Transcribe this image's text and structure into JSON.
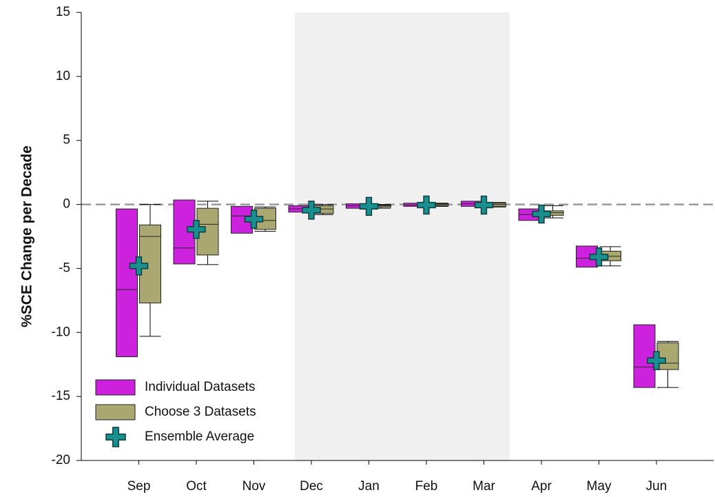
{
  "chart_data": {
    "type": "box",
    "y_label": "%SCE Change per Decade",
    "categories": [
      "Sep",
      "Oct",
      "Nov",
      "Dec",
      "Jan",
      "Feb",
      "Mar",
      "Apr",
      "May",
      "Jun"
    ],
    "ylim": [
      -20,
      15
    ],
    "yticks": [
      -20,
      -15,
      -10,
      -5,
      0,
      5,
      10,
      15
    ],
    "reference_line": 0,
    "series": [
      {
        "name": "Individual Datasets",
        "color": "#cc22dd",
        "q3": [
          -0.35,
          0.35,
          -0.15,
          -0.1,
          0.05,
          0.1,
          0.25,
          -0.35,
          -3.25,
          -9.4
        ],
        "median": [
          -6.65,
          -3.4,
          -0.9,
          -0.35,
          -0.1,
          -0.05,
          0.05,
          -0.8,
          -4.2,
          -12.7
        ],
        "q1": [
          -11.9,
          -4.65,
          -2.25,
          -0.6,
          -0.3,
          -0.15,
          -0.15,
          -1.25,
          -4.9,
          -14.3
        ]
      },
      {
        "name": "Choose 3 Datasets",
        "color": "#aaa870",
        "high": [
          0,
          0.25,
          -0.2,
          0,
          0,
          0.1,
          0.15,
          -0.1,
          -3.3,
          -10.7
        ],
        "q3": [
          -1.6,
          -0.3,
          -0.3,
          -0.1,
          -0.05,
          0.05,
          0.1,
          -0.5,
          -3.65,
          -10.8
        ],
        "median": [
          -2.5,
          -1.55,
          -1.25,
          -0.35,
          -0.1,
          0,
          0,
          -0.65,
          -4.05,
          -12.4
        ],
        "q1": [
          -7.7,
          -3.95,
          -1.95,
          -0.7,
          -0.2,
          -0.1,
          -0.15,
          -0.85,
          -4.4,
          -12.9
        ],
        "low": [
          -10.3,
          -4.7,
          -2.1,
          -0.8,
          -0.3,
          -0.15,
          -0.2,
          -1.05,
          -4.8,
          -14.3
        ]
      },
      {
        "name": "Ensemble Average",
        "color": "#1a8f8f",
        "values": [
          -4.8,
          -1.95,
          -1.15,
          -0.45,
          -0.15,
          -0.05,
          -0.05,
          -0.75,
          -4.1,
          -12.2
        ]
      }
    ]
  }
}
